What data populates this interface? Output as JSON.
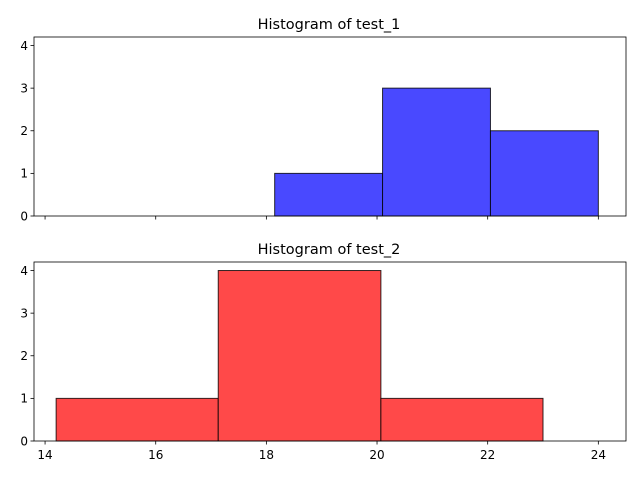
{
  "chart_data": [
    {
      "type": "bar",
      "title": "Histogram of test_1",
      "xlabel": "",
      "ylabel": "",
      "bins": [
        {
          "x0": 18.15,
          "x1": 20.1,
          "count": 1
        },
        {
          "x0": 20.1,
          "x1": 22.05,
          "count": 3
        },
        {
          "x0": 22.05,
          "x1": 24.0,
          "count": 2
        }
      ],
      "color": "#4949ff",
      "xlim": [
        13.8,
        24.5
      ],
      "ylim": [
        0,
        4.2
      ],
      "x_ticks": [
        14,
        16,
        18,
        20,
        22,
        24
      ],
      "y_ticks": [
        0,
        1,
        2,
        3,
        4
      ],
      "show_x_tick_labels": false,
      "grid": false
    },
    {
      "type": "bar",
      "title": "Histogram of test_2",
      "xlabel": "",
      "ylabel": "",
      "bins": [
        {
          "x0": 14.2,
          "x1": 17.13,
          "count": 1
        },
        {
          "x0": 17.13,
          "x1": 20.07,
          "count": 4
        },
        {
          "x0": 20.07,
          "x1": 23.0,
          "count": 1
        }
      ],
      "color": "#ff4949",
      "xlim": [
        13.8,
        24.5
      ],
      "ylim": [
        0,
        4.2
      ],
      "x_ticks": [
        14,
        16,
        18,
        20,
        22,
        24
      ],
      "y_ticks": [
        0,
        1,
        2,
        3,
        4
      ],
      "show_x_tick_labels": true,
      "grid": false
    }
  ]
}
